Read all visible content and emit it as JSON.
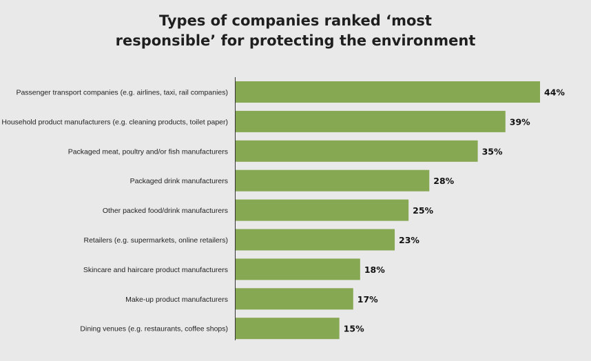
{
  "chart_data": {
    "type": "bar",
    "orientation": "horizontal",
    "title_lines": [
      "Types of companies ranked ‘most",
      "responsible’ for protecting the environment"
    ],
    "categories": [
      "Passenger transport companies (e.g. airlines, taxi, rail companies)",
      "Household product manufacturers (e.g. cleaning products, toilet paper)",
      "Packaged meat, poultry and/or fish manufacturers",
      "Packaged drink manufacturers",
      "Other packed food/drink manufacturers",
      "Retailers (e.g. supermarkets, online retailers)",
      "Skincare and haircare product manufacturers",
      "Make-up product manufacturers",
      "Dining venues (e.g. restaurants, coffee shops)"
    ],
    "values": [
      44,
      39,
      35,
      28,
      25,
      23,
      18,
      17,
      15
    ],
    "value_labels": [
      "44%",
      "39%",
      "35%",
      "28%",
      "25%",
      "23%",
      "18%",
      "17%",
      "15%"
    ],
    "unit": "%",
    "xlim": [
      0,
      44
    ],
    "grid": false,
    "legend": "none",
    "bar_color": "#86a852"
  }
}
